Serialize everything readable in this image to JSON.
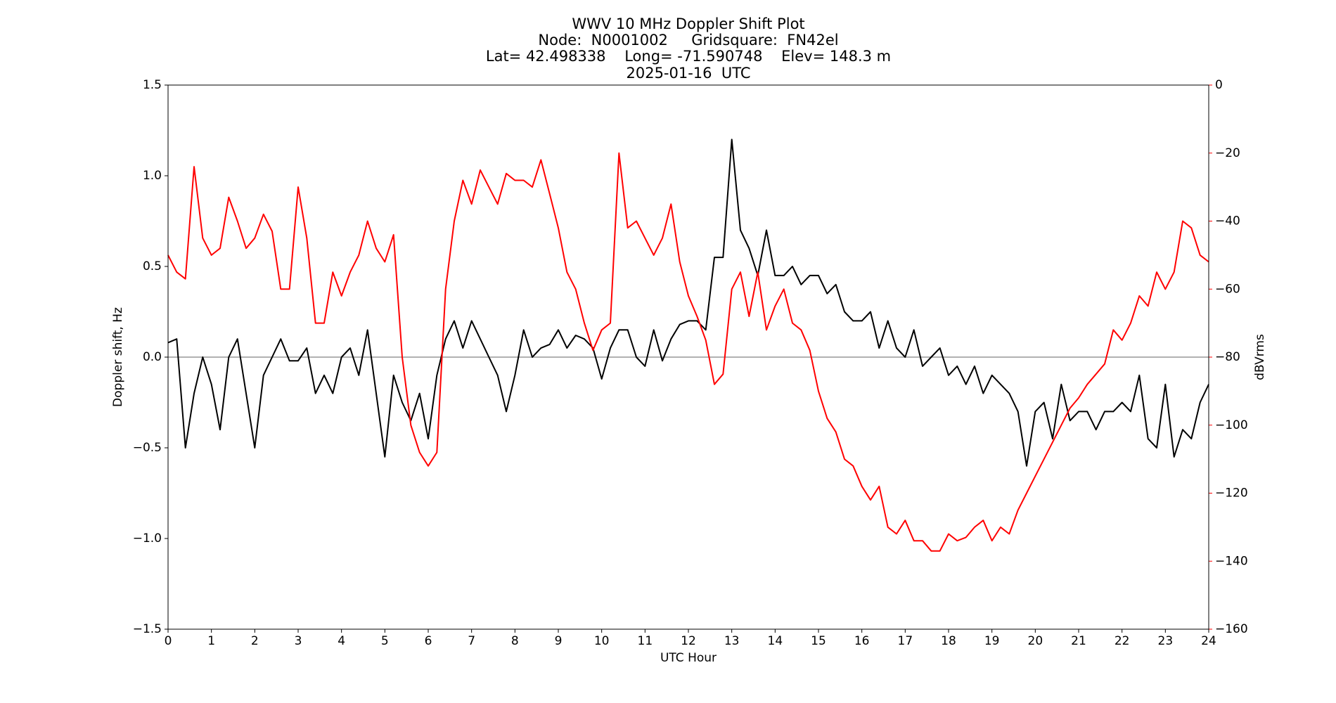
{
  "chart_data": {
    "type": "line",
    "title": "WWV 10 MHz Doppler Shift Plot",
    "subtitle": [
      "Node:  N0001002     Gridsquare:  FN42el",
      "Lat= 42.498338    Long= -71.590748    Elev= 148.3 m",
      "2025-01-16  UTC"
    ],
    "xlabel": "UTC Hour",
    "ylabel": "Doppler shift, Hz",
    "y2label": "dBVrms",
    "xlim": [
      0,
      24
    ],
    "xticks": [
      0,
      1,
      2,
      3,
      4,
      5,
      6,
      7,
      8,
      9,
      10,
      11,
      12,
      13,
      14,
      15,
      16,
      17,
      18,
      19,
      20,
      21,
      22,
      23,
      24
    ],
    "ylim": [
      -1.5,
      1.5
    ],
    "yticks": [
      {
        "value": -1.5,
        "label": "−1.5"
      },
      {
        "value": -1,
        "label": "−1.0"
      },
      {
        "value": -0.5,
        "label": "−0.5"
      },
      {
        "value": 0,
        "label": "0.0"
      },
      0.5,
      {
        "value": 1,
        "label": "1.0"
      },
      1.5
    ],
    "y2lim": [
      -160,
      0
    ],
    "y2ticks": [
      {
        "value": -160,
        "label": "−160"
      },
      {
        "value": -140,
        "label": "−140"
      },
      {
        "value": -120,
        "label": "−120"
      },
      {
        "value": -100,
        "label": "−100"
      },
      {
        "value": -80,
        "label": "−80"
      },
      {
        "value": -60,
        "label": "−60"
      },
      {
        "value": -40,
        "label": "−40"
      },
      {
        "value": -20,
        "label": "−20"
      },
      0
    ],
    "y2color": "#ff0000",
    "reference_line": 0,
    "x": [
      0,
      0.2,
      0.4,
      0.6,
      0.8,
      1,
      1.2,
      1.4,
      1.6,
      1.8,
      2,
      2.2,
      2.4,
      2.6,
      2.8,
      3,
      3.2,
      3.4,
      3.6,
      3.8,
      4,
      4.2,
      4.4,
      4.6,
      4.8,
      5,
      5.2,
      5.4,
      5.6,
      5.8,
      6,
      6.2,
      6.4,
      6.6,
      6.8,
      7,
      7.2,
      7.4,
      7.6,
      7.8,
      8,
      8.2,
      8.4,
      8.6,
      8.8,
      9,
      9.2,
      9.4,
      9.6,
      9.8,
      10,
      10.2,
      10.4,
      10.6,
      10.8,
      11,
      11.2,
      11.4,
      11.6,
      11.8,
      12,
      12.2,
      12.4,
      12.6,
      12.8,
      13,
      13.2,
      13.4,
      13.6,
      13.8,
      14,
      14.2,
      14.4,
      14.6,
      14.8,
      15,
      15.2,
      15.4,
      15.6,
      15.8,
      16,
      16.2,
      16.4,
      16.6,
      16.8,
      17,
      17.2,
      17.4,
      17.6,
      17.8,
      18,
      18.2,
      18.4,
      18.6,
      18.8,
      19,
      19.2,
      19.4,
      19.6,
      19.8,
      20,
      20.2,
      20.4,
      20.6,
      20.8,
      21,
      21.2,
      21.4,
      21.6,
      21.8,
      22,
      22.2,
      22.4,
      22.6,
      22.8,
      23,
      23.2,
      23.4,
      23.6,
      23.8,
      24
    ],
    "series": [
      {
        "color": "#000000",
        "axis": "y",
        "values": [
          0.08,
          0.1,
          -0.5,
          -0.2,
          0,
          -0.15,
          -0.4,
          0,
          0.1,
          -0.2,
          -0.5,
          -0.1,
          0,
          0.1,
          -0.02,
          -0.02,
          0.05,
          -0.2,
          -0.1,
          -0.2,
          0,
          0.05,
          -0.1,
          0.15,
          -0.2,
          -0.55,
          -0.1,
          -0.25,
          -0.35,
          -0.2,
          -0.45,
          -0.1,
          0.1,
          0.2,
          0.05,
          0.2,
          0.1,
          0,
          -0.1,
          -0.3,
          -0.1,
          0.15,
          0,
          0.05,
          0.07,
          0.15,
          0.05,
          0.12,
          0.1,
          0.05,
          -0.12,
          0.05,
          0.15,
          0.15,
          0,
          -0.05,
          0.15,
          -0.02,
          0.1,
          0.18,
          0.2,
          0.2,
          0.15,
          0.55,
          0.55,
          1.2,
          0.7,
          0.6,
          0.45,
          0.7,
          0.45,
          0.45,
          0.5,
          0.4,
          0.45,
          0.45,
          0.35,
          0.4,
          0.25,
          0.2,
          0.2,
          0.25,
          0.05,
          0.2,
          0.05,
          0,
          0.15,
          -0.05,
          0,
          0.05,
          -0.1,
          -0.05,
          -0.15,
          -0.05,
          -0.2,
          -0.1,
          -0.15,
          -0.2,
          -0.3,
          -0.6,
          -0.3,
          -0.25,
          -0.45,
          -0.15,
          -0.35,
          -0.3,
          -0.3,
          -0.4,
          -0.3,
          -0.3,
          -0.25,
          -0.3,
          -0.1,
          -0.45,
          -0.5,
          -0.15,
          -0.55,
          -0.4,
          -0.45,
          -0.25,
          -0.15
        ]
      },
      {
        "color": "#ff0000",
        "axis": "y2",
        "values": [
          -50,
          -55,
          -57,
          -24,
          -45,
          -50,
          -48,
          -33,
          -40,
          -48,
          -45,
          -38,
          -43,
          -60,
          -60,
          -30,
          -45,
          -70,
          -70,
          -55,
          -62,
          -55,
          -50,
          -40,
          -48,
          -52,
          -44,
          -80,
          -100,
          -108,
          -112,
          -108,
          -60,
          -40,
          -28,
          -35,
          -25,
          -30,
          -35,
          -26,
          -28,
          -28,
          -30,
          -22,
          -32,
          -42,
          -55,
          -60,
          -70,
          -78,
          -72,
          -70,
          -20,
          -42,
          -40,
          -45,
          -50,
          -45,
          -35,
          -52,
          -62,
          -68,
          -75,
          -88,
          -85,
          -60,
          -55,
          -68,
          -55,
          -72,
          -65,
          -60,
          -70,
          -72,
          -78,
          -90,
          -98,
          -102,
          -110,
          -112,
          -118,
          -122,
          -118,
          -130,
          -132,
          -128,
          -134,
          -134,
          -137,
          -137,
          -132,
          -134,
          -133,
          -130,
          -128,
          -134,
          -130,
          -132,
          -125,
          -120,
          -115,
          -110,
          -105,
          -100,
          -95,
          -92,
          -88,
          -85,
          -82,
          -72,
          -75,
          -70,
          -62,
          -65,
          -55,
          -60,
          -55,
          -40,
          -42,
          -50,
          -52
        ]
      }
    ]
  }
}
